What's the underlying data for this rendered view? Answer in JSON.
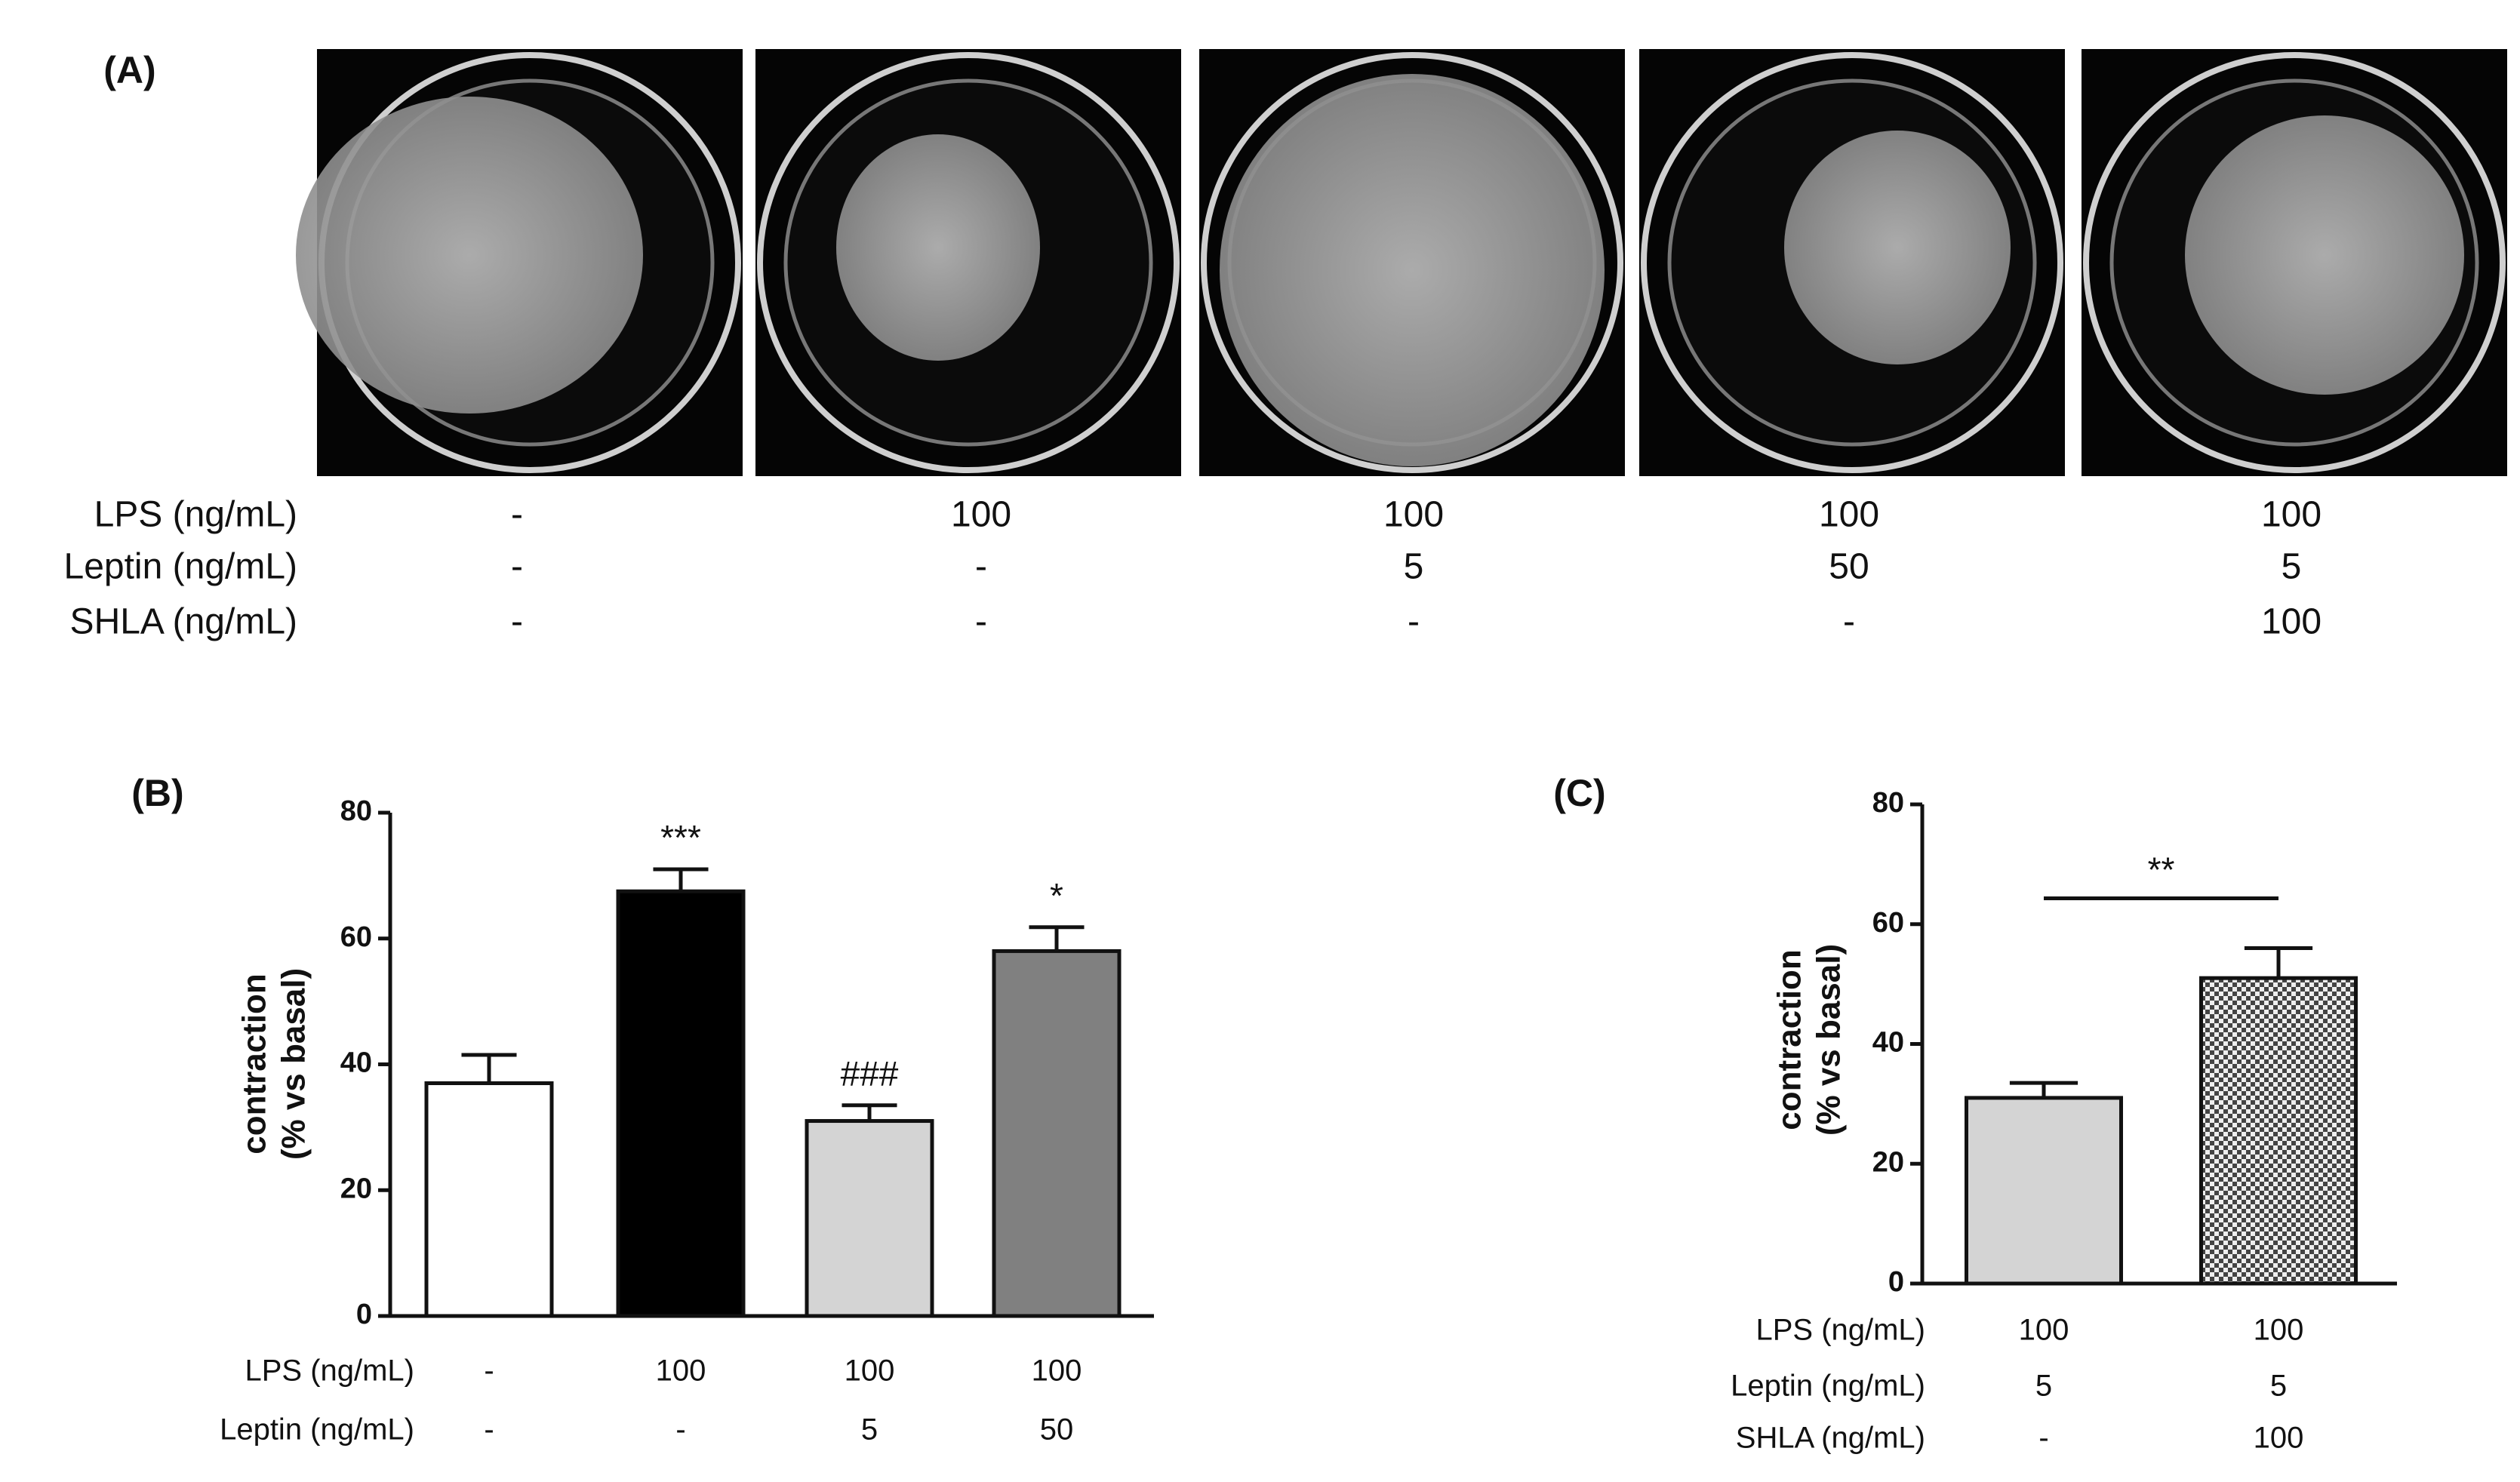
{
  "panel_a": {
    "label": "(A)",
    "condition_rows": [
      {
        "label": "LPS (ng/mL)",
        "cells": [
          "-",
          "100",
          "100",
          "100",
          "100"
        ]
      },
      {
        "label": "Leptin (ng/mL)",
        "cells": [
          "-",
          "-",
          "5",
          "50",
          "5"
        ]
      },
      {
        "label": "SHLA (ng/mL)",
        "cells": [
          "-",
          "-",
          "-",
          "-",
          "100"
        ]
      }
    ]
  },
  "chart_data": [
    {
      "type": "bar",
      "label": "(B)",
      "ylabel": [
        "contraction",
        "(% vs basal)"
      ],
      "values": [
        37,
        67.5,
        31,
        58
      ],
      "errors": [
        4.5,
        3.5,
        2.5,
        3.8
      ],
      "colors": [
        "#ffffff",
        "#000000",
        "#d4d4d4",
        "#808080"
      ],
      "patterns": [
        null,
        null,
        null,
        null
      ],
      "annotations": [
        null,
        "***",
        "###",
        "*"
      ],
      "ylim": [
        0,
        80
      ],
      "yticks": [
        0,
        20,
        40,
        60,
        80
      ],
      "condition_rows": [
        {
          "label": "LPS (ng/mL)",
          "cells": [
            "-",
            "100",
            "100",
            "100"
          ]
        },
        {
          "label": "Leptin (ng/mL)",
          "cells": [
            "-",
            "-",
            "5",
            "50"
          ]
        }
      ]
    },
    {
      "type": "bar",
      "label": "(C)",
      "ylabel": [
        "contraction",
        "(% vs basal)"
      ],
      "values": [
        31,
        51
      ],
      "errors": [
        2.5,
        5
      ],
      "colors": [
        "#d4d4d4",
        "#444444"
      ],
      "patterns": [
        null,
        "checkered"
      ],
      "significance_label": "**",
      "ylim": [
        0,
        80
      ],
      "yticks": [
        0,
        20,
        40,
        60,
        80
      ],
      "condition_rows": [
        {
          "label": "LPS (ng/mL)",
          "cells": [
            "100",
            "100"
          ]
        },
        {
          "label": "Leptin (ng/mL)",
          "cells": [
            "5",
            "5"
          ]
        },
        {
          "label": "SHLA (ng/mL)",
          "cells": [
            "-",
            "100"
          ]
        }
      ]
    }
  ]
}
